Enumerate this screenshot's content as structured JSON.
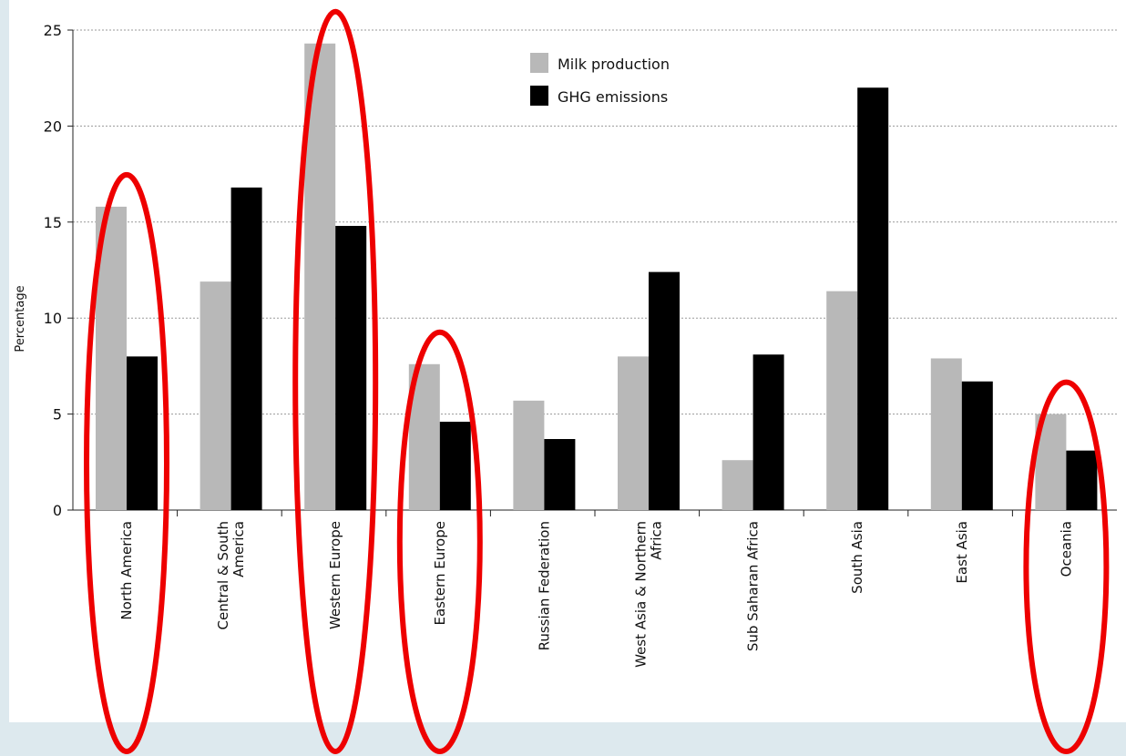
{
  "chart_data": {
    "type": "bar",
    "title": "",
    "xlabel": "",
    "ylabel": "Percentage",
    "ylim": [
      0,
      25
    ],
    "yticks": [
      0,
      5,
      10,
      15,
      20,
      25
    ],
    "grid": true,
    "legend_position": "top-right",
    "categories": [
      [
        "North America"
      ],
      [
        "Central & South",
        "America"
      ],
      [
        "Western Europe"
      ],
      [
        "Eastern Europe"
      ],
      [
        "Russian Federation"
      ],
      [
        "West Asia & Northern",
        "Africa"
      ],
      [
        "Sub Saharan Africa"
      ],
      [
        "South Asia"
      ],
      [
        "East Asia"
      ],
      [
        "Oceania"
      ]
    ],
    "series": [
      {
        "name": "Milk production",
        "color": "#b8b8b8",
        "values": [
          15.8,
          11.9,
          24.3,
          7.6,
          5.7,
          8.0,
          2.6,
          11.4,
          7.9,
          5.0
        ]
      },
      {
        "name": "GHG emissions",
        "color": "#000000",
        "values": [
          8.0,
          16.8,
          14.8,
          4.6,
          3.7,
          12.4,
          8.1,
          22.0,
          6.7,
          3.1
        ]
      }
    ],
    "highlighted_categories": [
      "North America",
      "Western Europe",
      "Eastern Europe",
      "Oceania"
    ],
    "highlight_color": "#ee0000"
  }
}
